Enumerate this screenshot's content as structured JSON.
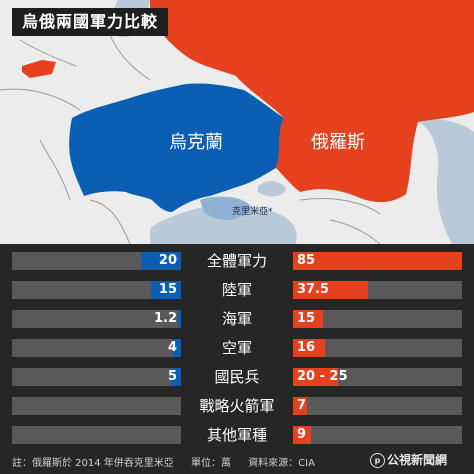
{
  "title": "烏俄兩國軍力比較",
  "map": {
    "ukraine_label": "烏克蘭",
    "russia_label": "俄羅斯",
    "crimea_label": "克里米亞*"
  },
  "colors": {
    "ukraine": "#0a5fb4",
    "russia": "#e5411e",
    "bar_background": "#595959",
    "page_background": "#262626"
  },
  "chart_data": {
    "type": "bar",
    "categories": [
      "全體軍力",
      "陸軍",
      "海軍",
      "空軍",
      "國民兵",
      "戰略火箭軍",
      "其他軍種"
    ],
    "series": [
      {
        "name": "烏克蘭",
        "values": [
          20,
          15,
          1.2,
          4,
          5,
          null,
          null
        ],
        "labels": [
          "20",
          "15",
          "1.2",
          "4",
          "5",
          "",
          ""
        ]
      },
      {
        "name": "俄羅斯",
        "values": [
          85,
          37.5,
          15,
          16,
          22.5,
          7,
          9
        ],
        "labels": [
          "85",
          "37.5",
          "15",
          "16",
          "20 - 25",
          "7",
          "9"
        ]
      }
    ],
    "xlim": [
      0,
      85
    ]
  },
  "footer": {
    "note": "註：俄羅斯於 2014 年併吞克里米亞",
    "unit": "單位：萬",
    "source": "資料來源：CIA"
  },
  "logo_text": "公視新聞網"
}
